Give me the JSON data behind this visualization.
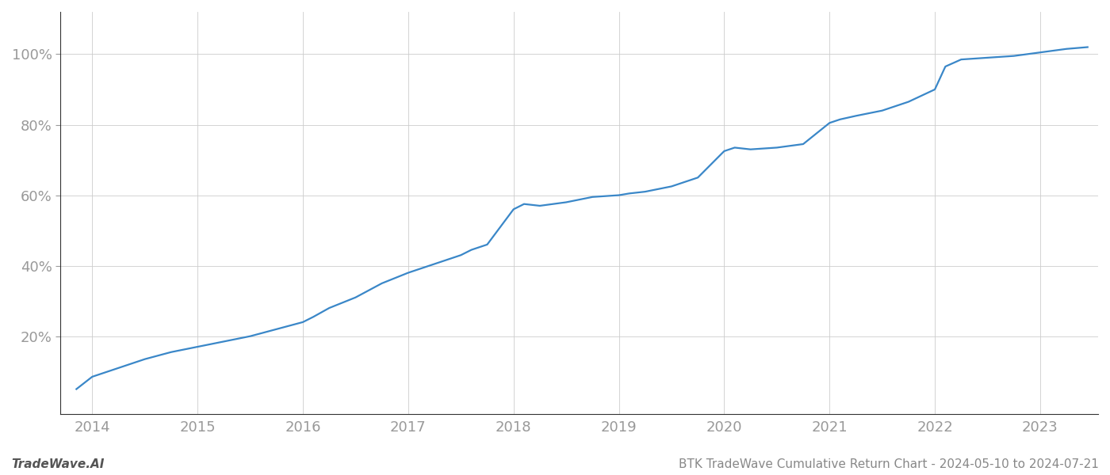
{
  "title": "BTK TradeWave Cumulative Return Chart - 2024-05-10 to 2024-07-21",
  "watermark": "TradeWave.AI",
  "line_color": "#3a87c8",
  "background_color": "#ffffff",
  "grid_color": "#cccccc",
  "x_years": [
    2014,
    2015,
    2016,
    2017,
    2018,
    2019,
    2020,
    2021,
    2022,
    2023
  ],
  "x_values": [
    2013.85,
    2014.0,
    2014.25,
    2014.5,
    2014.75,
    2015.0,
    2015.25,
    2015.5,
    2015.75,
    2016.0,
    2016.1,
    2016.25,
    2016.5,
    2016.75,
    2017.0,
    2017.25,
    2017.5,
    2017.6,
    2017.75,
    2018.0,
    2018.1,
    2018.25,
    2018.5,
    2018.75,
    2019.0,
    2019.1,
    2019.25,
    2019.5,
    2019.75,
    2020.0,
    2020.1,
    2020.25,
    2020.5,
    2020.75,
    2021.0,
    2021.1,
    2021.25,
    2021.5,
    2021.75,
    2022.0,
    2022.1,
    2022.25,
    2022.5,
    2022.75,
    2023.0,
    2023.25,
    2023.45
  ],
  "y_values": [
    5.0,
    8.5,
    11.0,
    13.5,
    15.5,
    17.0,
    18.5,
    20.0,
    22.0,
    24.0,
    25.5,
    28.0,
    31.0,
    35.0,
    38.0,
    40.5,
    43.0,
    44.5,
    46.0,
    56.0,
    57.5,
    57.0,
    58.0,
    59.5,
    60.0,
    60.5,
    61.0,
    62.5,
    65.0,
    72.5,
    73.5,
    73.0,
    73.5,
    74.5,
    80.5,
    81.5,
    82.5,
    84.0,
    86.5,
    90.0,
    96.5,
    98.5,
    99.0,
    99.5,
    100.5,
    101.5,
    102.0
  ],
  "ylim": [
    -2,
    112
  ],
  "xlim": [
    2013.7,
    2023.55
  ],
  "yticks": [
    20,
    40,
    60,
    80,
    100
  ],
  "ytick_labels": [
    "20%",
    "40%",
    "60%",
    "80%",
    "100%"
  ],
  "line_width": 1.6,
  "tick_fontsize": 13,
  "footer_fontsize": 11
}
